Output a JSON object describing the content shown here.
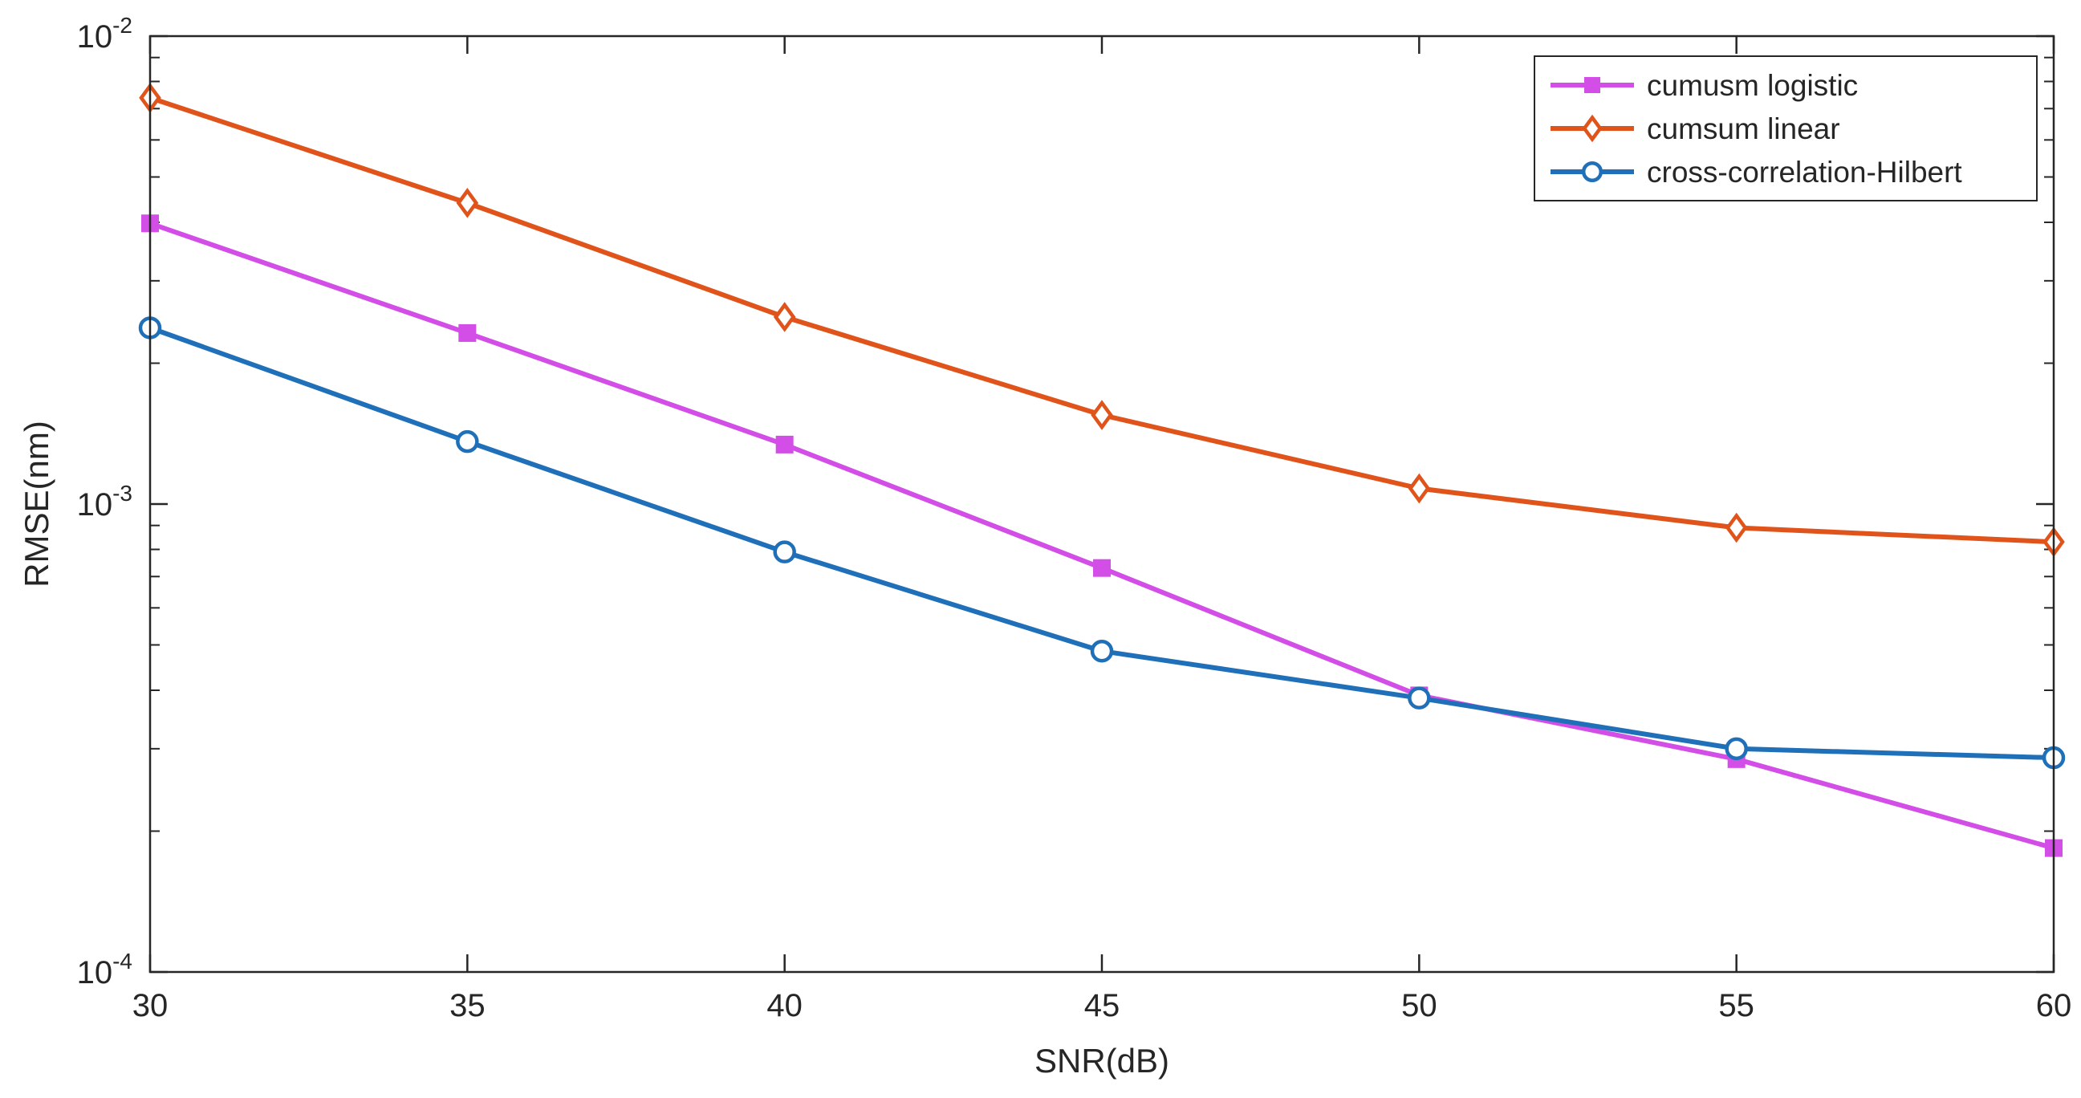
{
  "chart_data": {
    "type": "line",
    "title": "",
    "xlabel": "SNR(dB)",
    "ylabel": "RMSE(nm)",
    "yscale": "log",
    "xlim": [
      30,
      60
    ],
    "ylim": [
      0.0001,
      0.01
    ],
    "x": [
      30,
      35,
      40,
      45,
      50,
      55,
      60
    ],
    "x_ticks": [
      30,
      35,
      40,
      45,
      50,
      55,
      60
    ],
    "x_tick_labels": [
      "30",
      "35",
      "40",
      "45",
      "50",
      "55",
      "60"
    ],
    "y_ticks": [
      {
        "value": 0.01,
        "base": "10",
        "exp": "-2"
      },
      {
        "value": 0.001,
        "base": "10",
        "exp": "-3"
      },
      {
        "value": 0.0001,
        "base": "10",
        "exp": "-4"
      }
    ],
    "grid": false,
    "legend_position": "top-right",
    "series": [
      {
        "name": "cumusm logistic",
        "color": "#d24ee6",
        "marker": "square",
        "values": [
          0.00398,
          0.00232,
          0.00134,
          0.00073,
          0.00039,
          0.000285,
          0.000184
        ]
      },
      {
        "name": "cumsum linear",
        "color": "#e0541b",
        "marker": "diamond",
        "values": [
          0.00738,
          0.0044,
          0.00251,
          0.00155,
          0.00108,
          0.00089,
          0.00083
        ]
      },
      {
        "name": "cross-correlation-Hilbert",
        "color": "#1f70b8",
        "marker": "circle",
        "values": [
          0.00238,
          0.00136,
          0.00079,
          0.000485,
          0.000385,
          0.0003,
          0.000287
        ]
      }
    ]
  }
}
